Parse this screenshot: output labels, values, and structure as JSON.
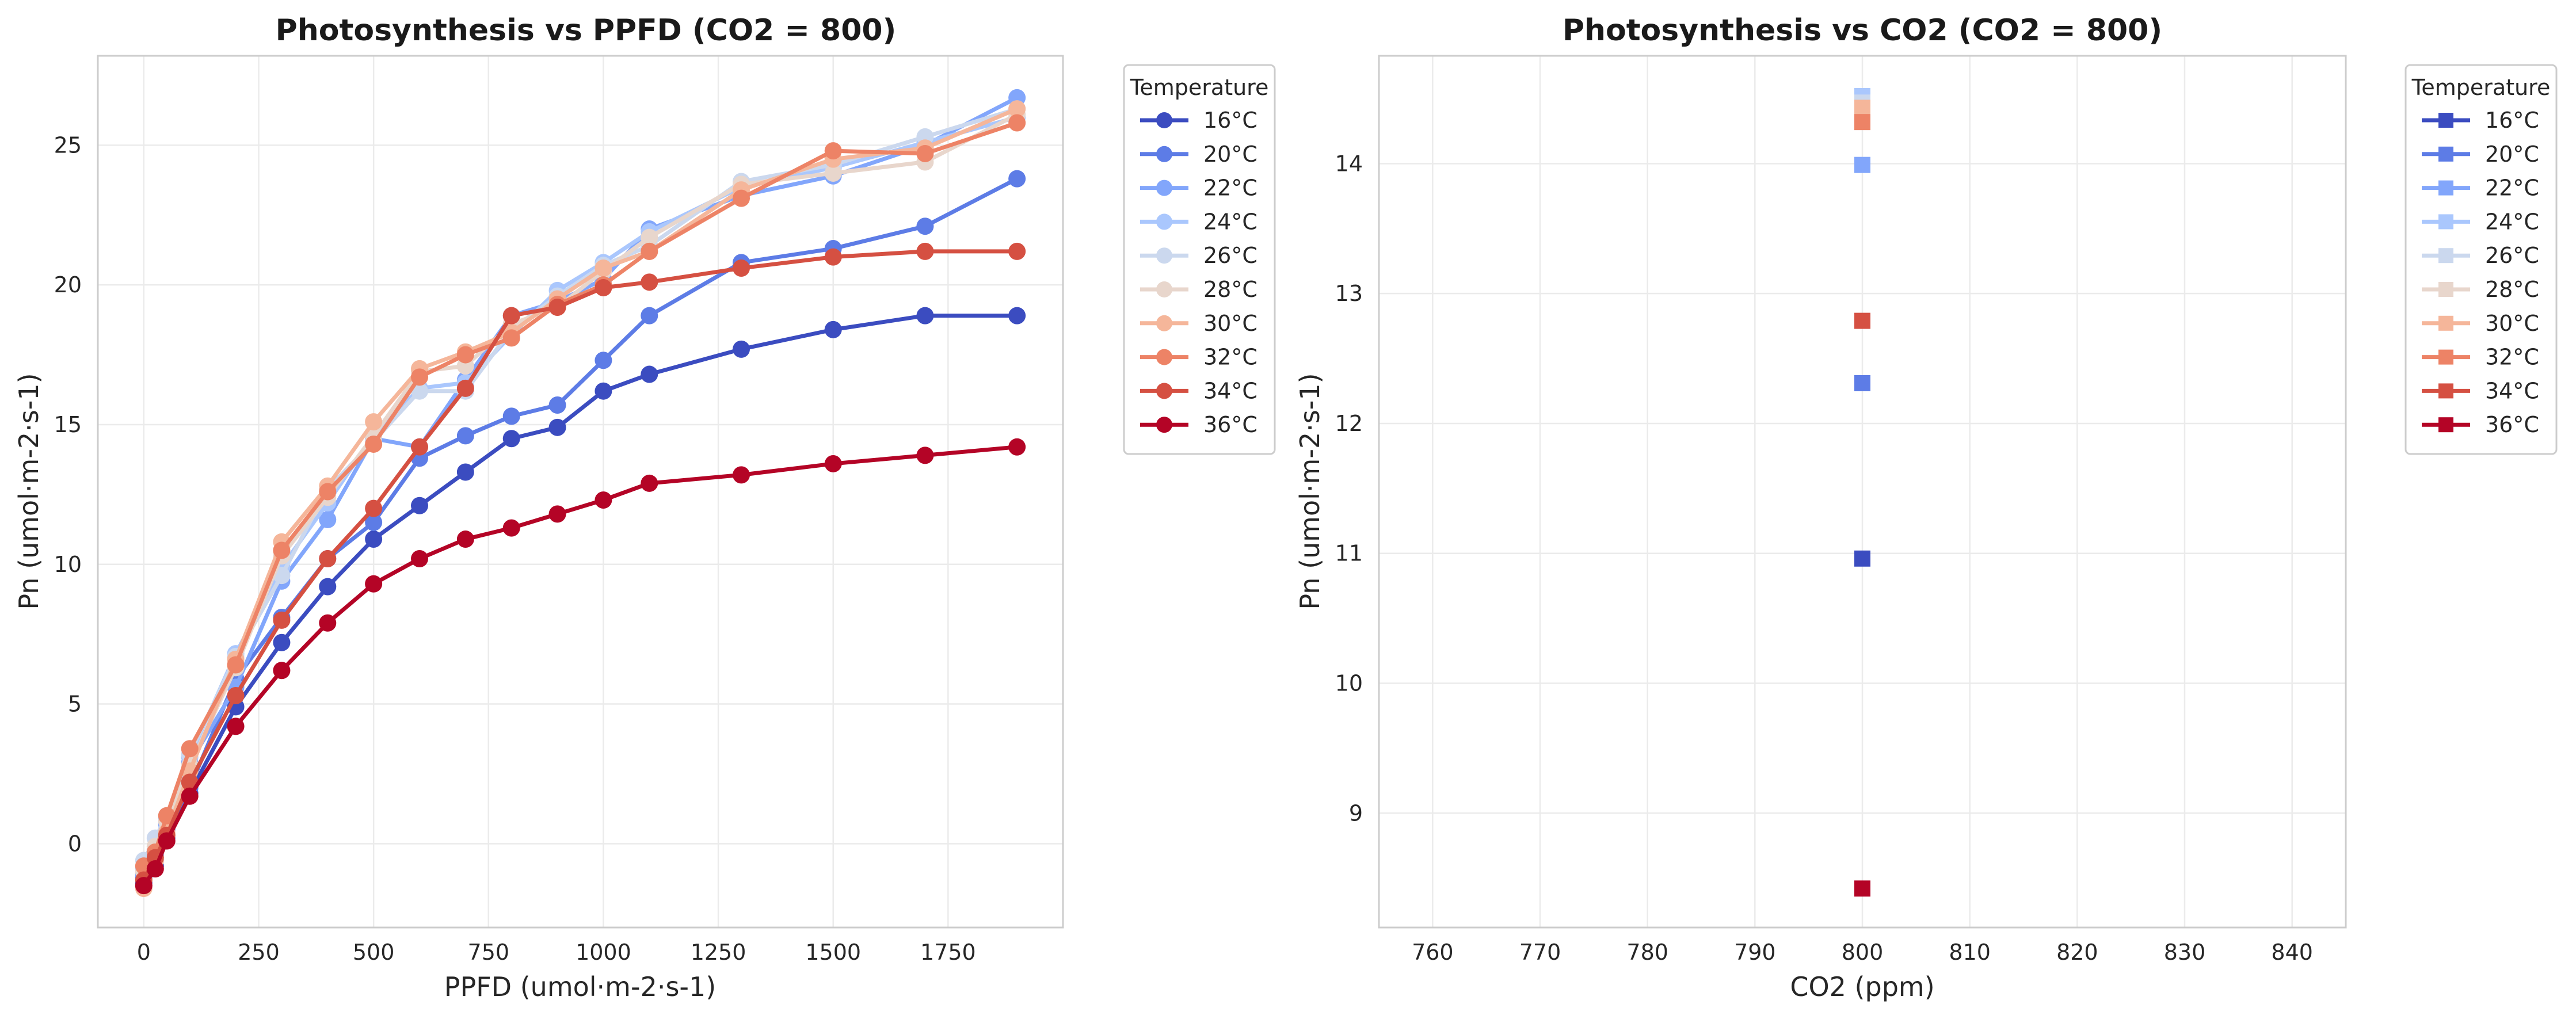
{
  "chart_data": [
    {
      "type": "line",
      "title": "Photosynthesis vs PPFD (CO2 = 800)",
      "xlabel": "PPFD (umol·m-2·s-1)",
      "ylabel": "Pn (umol·m-2·s-1)",
      "xlim": [
        -100,
        2000
      ],
      "ylim": [
        -3,
        28.2
      ],
      "xticks": [
        0,
        250,
        500,
        750,
        1000,
        1250,
        1500,
        1750
      ],
      "yticks": [
        0,
        5,
        10,
        15,
        20,
        25
      ],
      "grid": true,
      "marker": "circle",
      "legend": {
        "title": "Temperature",
        "placement": "outside-top-right"
      },
      "x": [
        0,
        25,
        50,
        100,
        200,
        300,
        400,
        500,
        600,
        700,
        800,
        900,
        1000,
        1100,
        1300,
        1500,
        1700,
        1900
      ],
      "series": [
        {
          "name": "16°C",
          "color": "#3b4cc0",
          "values": [
            -1.4,
            -0.8,
            0.2,
            1.8,
            4.9,
            7.2,
            9.2,
            10.9,
            12.1,
            13.3,
            14.5,
            14.9,
            16.2,
            16.8,
            17.7,
            18.4,
            18.9,
            18.9
          ]
        },
        {
          "name": "20°C",
          "color": "#5d7ce6",
          "values": [
            -1.2,
            -0.6,
            0.5,
            2.0,
            5.9,
            8.1,
            10.2,
            11.5,
            13.8,
            14.6,
            15.3,
            15.7,
            17.3,
            18.9,
            20.8,
            21.3,
            22.1,
            23.8
          ]
        },
        {
          "name": "22°C",
          "color": "#82a6fb",
          "values": [
            -1.1,
            -0.4,
            0.7,
            2.9,
            5.6,
            9.4,
            11.6,
            14.5,
            14.2,
            16.6,
            18.9,
            19.4,
            20.2,
            22.0,
            23.2,
            23.9,
            25.0,
            26.7
          ]
        },
        {
          "name": "24°C",
          "color": "#aac7fd",
          "values": [
            -0.9,
            -0.2,
            0.9,
            3.1,
            6.8,
            9.9,
            12.2,
            14.6,
            16.3,
            16.5,
            18.2,
            19.8,
            20.8,
            21.9,
            23.5,
            24.2,
            25.1,
            26.0
          ]
        },
        {
          "name": "26°C",
          "color": "#cbd8ee",
          "values": [
            -0.6,
            0.2,
            1.0,
            3.2,
            6.7,
            9.6,
            12.7,
            14.4,
            16.2,
            16.2,
            18.4,
            19.6,
            20.7,
            21.4,
            23.7,
            24.3,
            25.3,
            26.3
          ]
        },
        {
          "name": "28°C",
          "color": "#e8d6cc",
          "values": [
            -1.0,
            -0.1,
            0.8,
            2.8,
            6.3,
            10.3,
            12.4,
            14.6,
            16.9,
            17.1,
            18.6,
            19.2,
            20.5,
            21.7,
            23.6,
            24.0,
            24.4,
            26.1
          ]
        },
        {
          "name": "30°C",
          "color": "#f5b69a",
          "values": [
            -1.6,
            -0.6,
            0.4,
            2.6,
            6.6,
            10.8,
            12.8,
            15.1,
            17.0,
            17.6,
            18.3,
            19.5,
            20.6,
            21.2,
            23.4,
            24.5,
            24.9,
            26.3
          ]
        },
        {
          "name": "32°C",
          "color": "#ed8366",
          "values": [
            -0.8,
            -0.3,
            1.0,
            3.4,
            6.4,
            10.5,
            12.6,
            14.3,
            16.7,
            17.5,
            18.1,
            19.3,
            20.0,
            21.2,
            23.1,
            24.8,
            24.7,
            25.8
          ]
        },
        {
          "name": "34°C",
          "color": "#d55042",
          "values": [
            -1.3,
            -0.5,
            0.3,
            2.2,
            5.3,
            8.0,
            10.2,
            12.0,
            14.2,
            16.3,
            18.9,
            19.2,
            19.9,
            20.1,
            20.6,
            21.0,
            21.2,
            21.2
          ]
        },
        {
          "name": "36°C",
          "color": "#b40426",
          "values": [
            -1.5,
            -0.9,
            0.1,
            1.7,
            4.2,
            6.2,
            7.9,
            9.3,
            10.2,
            10.9,
            11.3,
            11.8,
            12.3,
            12.9,
            13.2,
            13.6,
            13.9,
            14.2
          ]
        }
      ]
    },
    {
      "type": "scatter",
      "title": "Photosynthesis vs CO2 (CO2 = 800)",
      "xlabel": "CO2 (ppm)",
      "ylabel": "Pn (umol·m-2·s-1)",
      "xlim": [
        755,
        845
      ],
      "ylim": [
        8.12,
        14.83
      ],
      "xticks": [
        760,
        770,
        780,
        790,
        800,
        810,
        820,
        830,
        840
      ],
      "yticks": [
        9,
        10,
        11,
        12,
        13,
        14
      ],
      "grid": true,
      "marker": "square",
      "legend": {
        "title": "Temperature",
        "placement": "outside-top-right"
      },
      "x": [
        800
      ],
      "series": [
        {
          "name": "16°C",
          "color": "#3b4cc0",
          "values": [
            10.96
          ]
        },
        {
          "name": "20°C",
          "color": "#5d7ce6",
          "values": [
            12.31
          ]
        },
        {
          "name": "22°C",
          "color": "#82a6fb",
          "values": [
            13.99
          ]
        },
        {
          "name": "24°C",
          "color": "#aac7fd",
          "values": [
            14.52
          ]
        },
        {
          "name": "26°C",
          "color": "#cbd8ee",
          "values": [
            14.47
          ]
        },
        {
          "name": "28°C",
          "color": "#e8d6cc",
          "values": [
            14.38
          ]
        },
        {
          "name": "30°C",
          "color": "#f5b69a",
          "values": [
            14.43
          ]
        },
        {
          "name": "32°C",
          "color": "#ed8366",
          "values": [
            14.32
          ]
        },
        {
          "name": "34°C",
          "color": "#d55042",
          "values": [
            12.79
          ]
        },
        {
          "name": "36°C",
          "color": "#b40426",
          "values": [
            8.42
          ]
        }
      ]
    }
  ]
}
